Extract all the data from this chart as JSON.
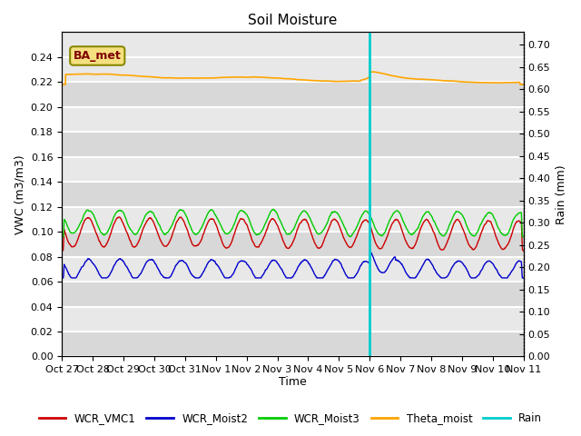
{
  "title": "Soil Moisture",
  "xlabel": "Time",
  "ylabel_left": "VWC (m3/m3)",
  "ylabel_right": "Rain (mm)",
  "x_tick_labels": [
    "Oct 27",
    "Oct 28",
    "Oct 29",
    "Oct 30",
    "Oct 31",
    "Nov 1",
    "Nov 2",
    "Nov 3",
    "Nov 4",
    "Nov 5",
    "Nov 6",
    "Nov 7",
    "Nov 8",
    "Nov 9",
    "Nov 10",
    "Nov 11"
  ],
  "ylim_left": [
    0.0,
    0.26
  ],
  "ylim_right": [
    0.0,
    0.728
  ],
  "yticks_left": [
    0.0,
    0.02,
    0.04,
    0.06,
    0.08,
    0.1,
    0.12,
    0.14,
    0.16,
    0.18,
    0.2,
    0.22,
    0.24
  ],
  "yticks_right": [
    0.0,
    0.05,
    0.1,
    0.15,
    0.2,
    0.25,
    0.3,
    0.35,
    0.4,
    0.45,
    0.5,
    0.55,
    0.6,
    0.65,
    0.7
  ],
  "bg_color": "#e8e8e8",
  "grid_color": "#ffffff",
  "label_box_color": "#f5e080",
  "label_box_text": "BA_met",
  "label_box_edge_color": "#888800",
  "label_box_text_color": "#800000",
  "colors": {
    "WCR_VMC1": "#cc0000",
    "WCR_Moist2": "#0000cc",
    "WCR_Moist3": "#00cc00",
    "Theta_moist": "#ffa500",
    "Rain": "#00cccc"
  },
  "vert_line_color": "#00cccc",
  "vert_line_day": 10,
  "total_days": 15,
  "n_points": 1440
}
